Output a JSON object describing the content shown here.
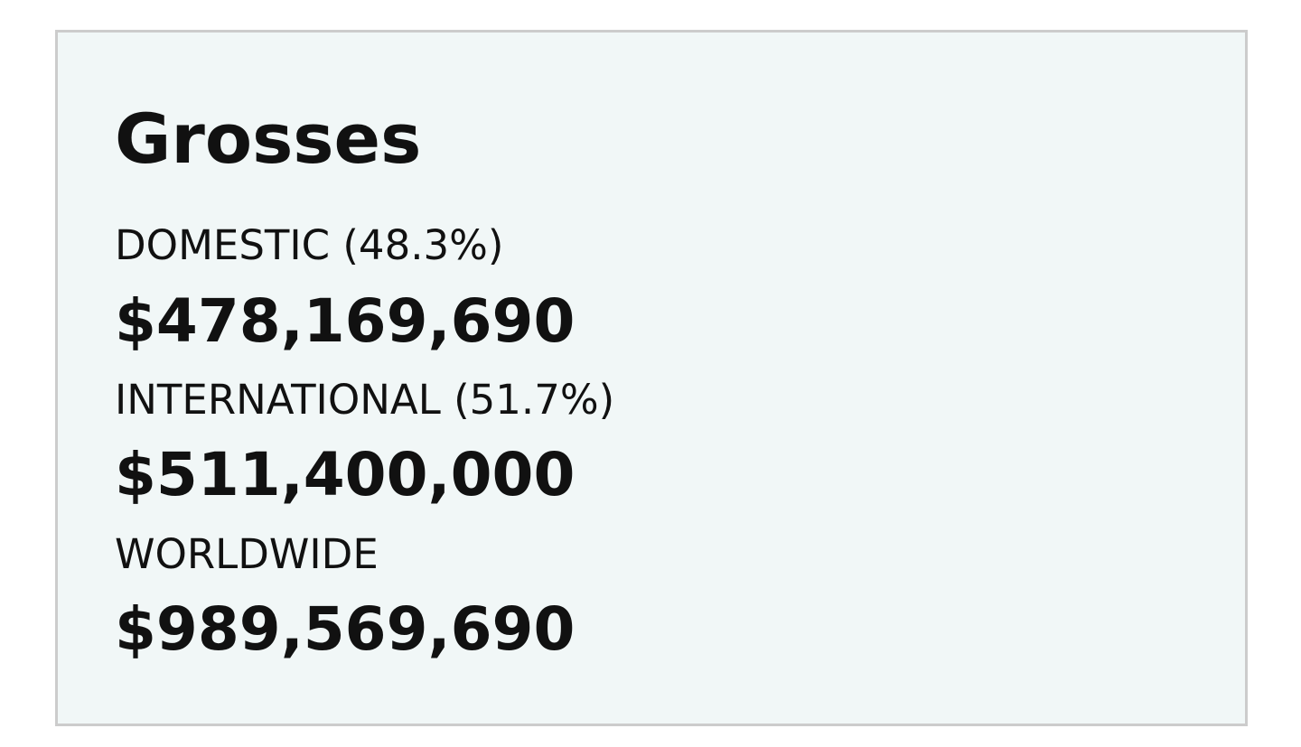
{
  "panel": {
    "title": "Grosses",
    "rows": [
      {
        "label": "DOMESTIC (48.3%)",
        "value": "$478,169,690"
      },
      {
        "label": "INTERNATIONAL (51.7%)",
        "value": "$511,400,000"
      },
      {
        "label": "WORLDWIDE",
        "value": "$989,569,690"
      }
    ]
  },
  "colors": {
    "panel_background": "#f1f7f7",
    "panel_border": "#cccccc",
    "text": "#111111"
  }
}
